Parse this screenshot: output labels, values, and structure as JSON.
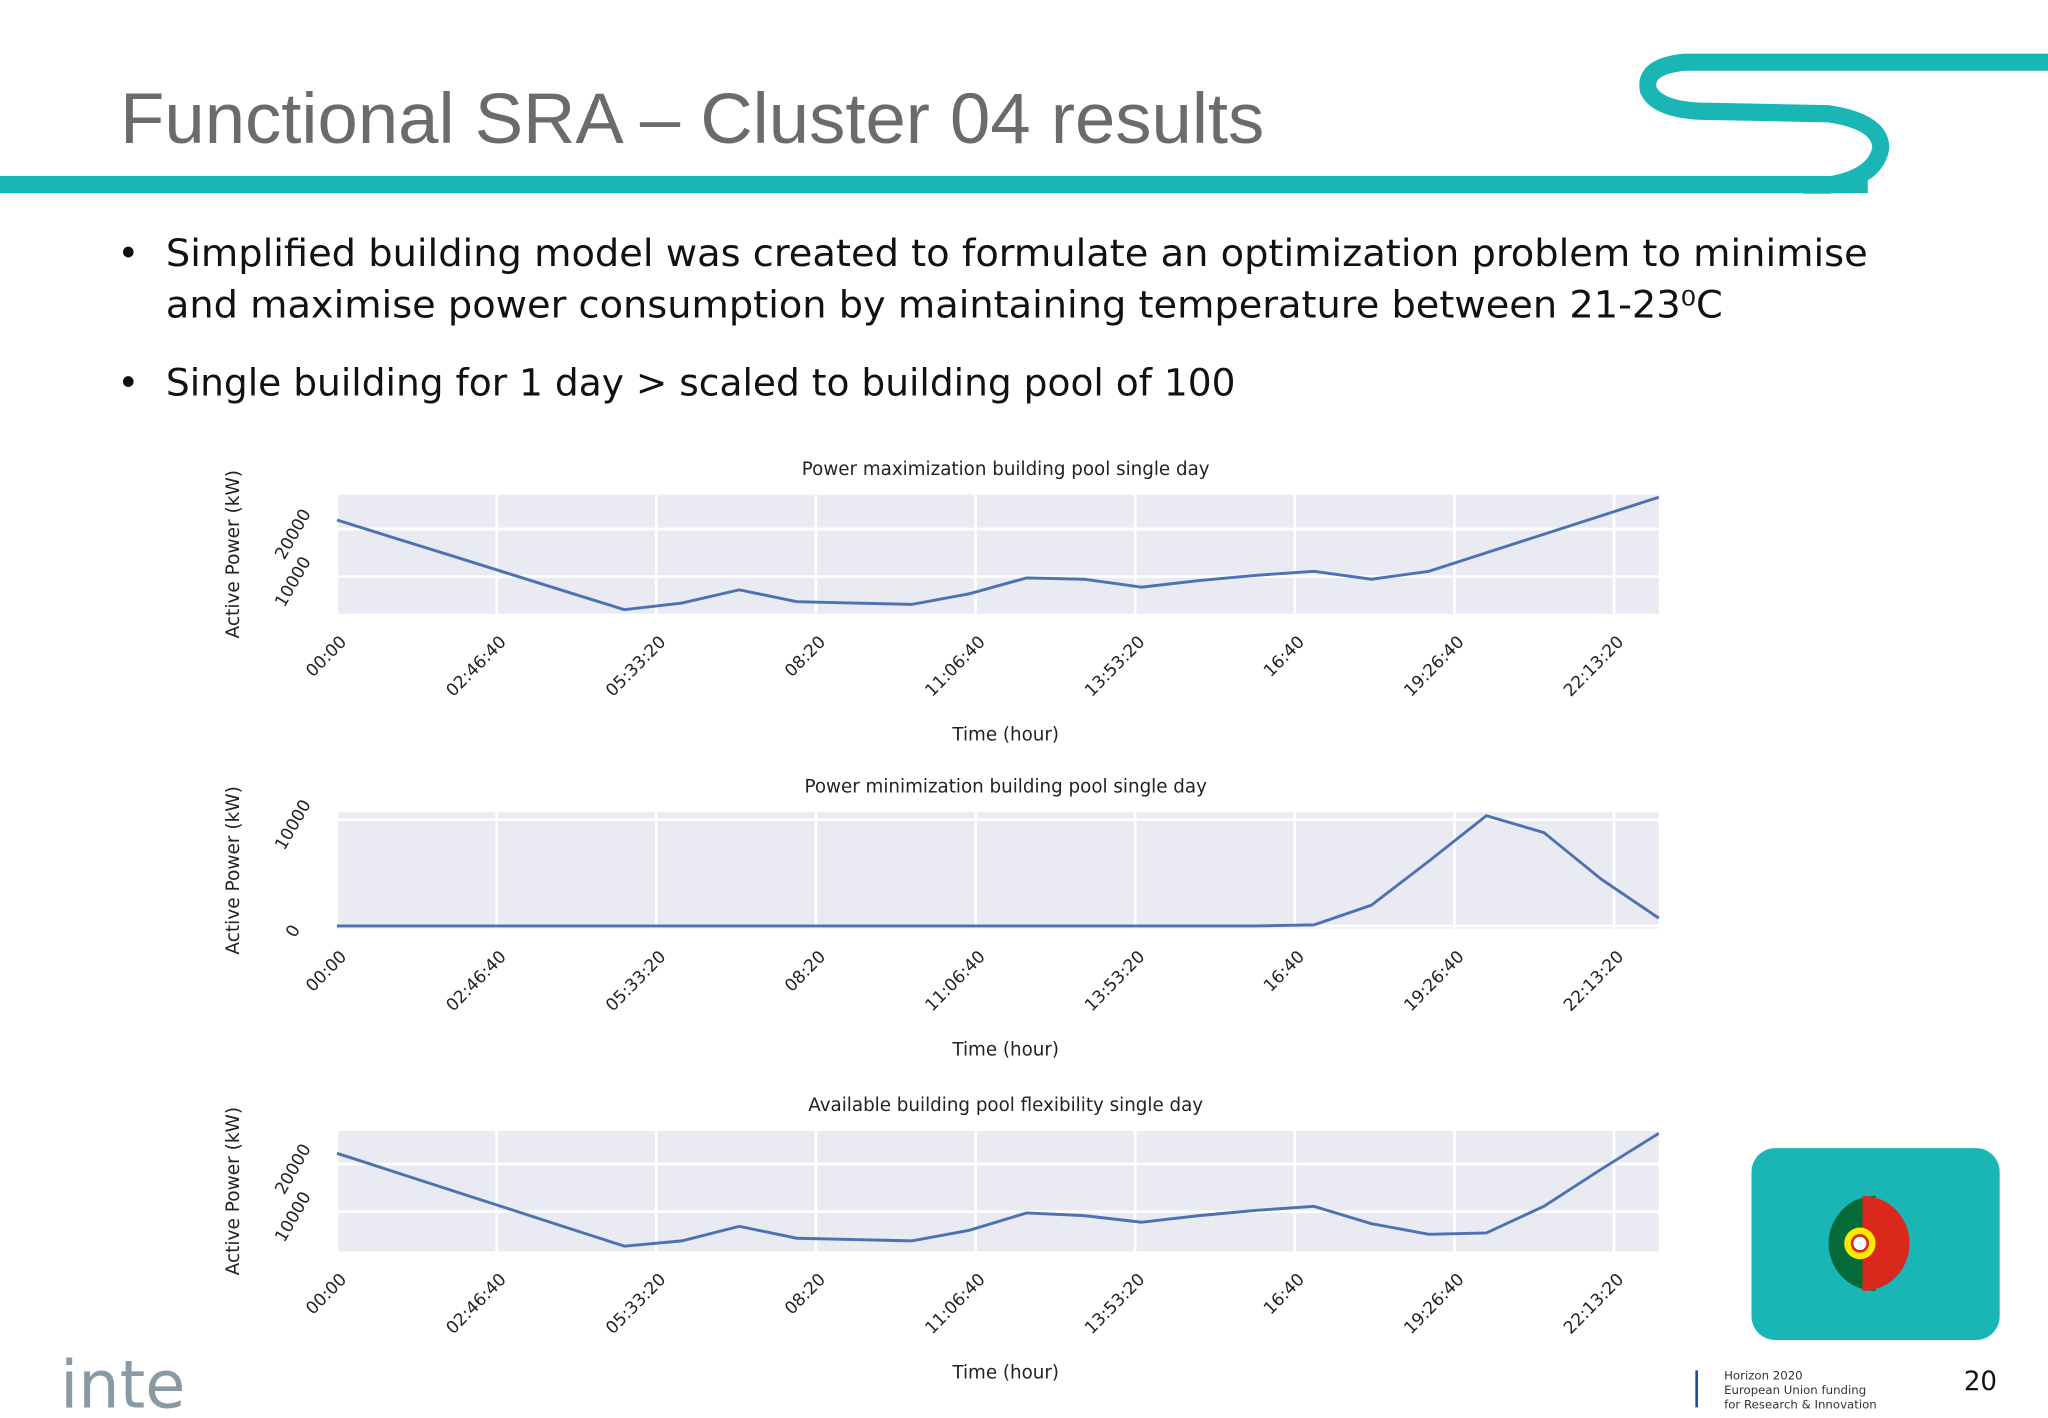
{
  "header": {
    "title": "Functional SRA – Cluster 04 results"
  },
  "bullets": [
    "Simplified building model was created to formulate an optimization problem to minimise",
    "and maximise power consumption by maintaining temperature between 21-23⁰C",
    "Single building for 1 day > scaled to building pool of 100"
  ],
  "chart_data": [
    {
      "type": "line",
      "title": "Power maximization building pool single day",
      "x_label": "Time (hour)",
      "y_label": "Active Power (kW)",
      "color": "#4c72b0",
      "grid": true,
      "x": [
        0,
        3600,
        7200,
        10800,
        14400,
        18000,
        21600,
        25200,
        28800,
        32400,
        36000,
        39600,
        43200,
        46800,
        50400,
        54000,
        57600,
        61200,
        64800,
        68400,
        72000,
        75600,
        79200,
        82800
      ],
      "values": [
        21900,
        18130,
        14360,
        10590,
        6820,
        3050,
        4440,
        7220,
        4720,
        4440,
        4170,
        6390,
        9720,
        9440,
        7780,
        9170,
        10280,
        11110,
        9440,
        11110,
        15000,
        18890,
        22780,
        26670
      ],
      "xlim": [
        0,
        82800
      ],
      "xticks": [
        {
          "value": 0,
          "label": "00:00"
        },
        {
          "value": 10000,
          "label": "02:46:40"
        },
        {
          "value": 20000,
          "label": "05:33:20"
        },
        {
          "value": 30000,
          "label": "08:20"
        },
        {
          "value": 40000,
          "label": "11:06:40"
        },
        {
          "value": 50000,
          "label": "13:53:20"
        },
        {
          "value": 60000,
          "label": "16:40"
        },
        {
          "value": 70000,
          "label": "19:26:40"
        },
        {
          "value": 80000,
          "label": "22:13:20"
        }
      ],
      "ylim": [
        2200,
        27200
      ],
      "yticks": [
        10000,
        20000
      ]
    },
    {
      "type": "line",
      "title": "Power minimization building pool single day",
      "x_label": "Time (hour)",
      "y_label": "Active Power (kW)",
      "color": "#4c72b0",
      "grid": true,
      "x": [
        0,
        3600,
        7200,
        10800,
        14400,
        18000,
        21600,
        25200,
        28800,
        32400,
        36000,
        39600,
        43200,
        46800,
        50400,
        54000,
        57600,
        61200,
        64800,
        68400,
        72000,
        75600,
        79200,
        82800
      ],
      "values": [
        0,
        0,
        0,
        0,
        0,
        0,
        0,
        0,
        0,
        0,
        0,
        0,
        0,
        0,
        0,
        0,
        0,
        100,
        1950,
        6100,
        10370,
        8780,
        4390,
        730
      ],
      "xlim": [
        0,
        82800
      ],
      "xticks": [
        {
          "value": 0,
          "label": "00:00"
        },
        {
          "value": 10000,
          "label": "02:46:40"
        },
        {
          "value": 20000,
          "label": "05:33:20"
        },
        {
          "value": 30000,
          "label": "08:20"
        },
        {
          "value": 40000,
          "label": "11:06:40"
        },
        {
          "value": 50000,
          "label": "13:53:20"
        },
        {
          "value": 60000,
          "label": "16:40"
        },
        {
          "value": 70000,
          "label": "19:26:40"
        },
        {
          "value": 80000,
          "label": "22:13:20"
        }
      ],
      "ylim": [
        -250,
        10700
      ],
      "yticks": [
        0,
        10000
      ]
    },
    {
      "type": "line",
      "title": "Available building pool flexibility single day",
      "x_label": "Time (hour)",
      "y_label": "Active Power (kW)",
      "color": "#4c72b0",
      "grid": true,
      "x": [
        0,
        3600,
        7200,
        10800,
        14400,
        18000,
        21600,
        25200,
        28800,
        32400,
        36000,
        39600,
        43200,
        46800,
        50400,
        54000,
        57600,
        61200,
        64800,
        68400,
        72000,
        75600,
        79200,
        82800
      ],
      "values": [
        22220,
        18330,
        14440,
        10560,
        6670,
        2780,
        3890,
        6940,
        4440,
        4170,
        3890,
        6110,
        9720,
        9170,
        7780,
        9170,
        10280,
        11110,
        7500,
        5280,
        5560,
        11110,
        18890,
        26390
      ],
      "xlim": [
        0,
        82800
      ],
      "xticks": [
        {
          "value": 0,
          "label": "00:00"
        },
        {
          "value": 10000,
          "label": "02:46:40"
        },
        {
          "value": 20000,
          "label": "05:33:20"
        },
        {
          "value": 30000,
          "label": "08:20"
        },
        {
          "value": 40000,
          "label": "11:06:40"
        },
        {
          "value": 50000,
          "label": "13:53:20"
        },
        {
          "value": 60000,
          "label": "16:40"
        },
        {
          "value": 70000,
          "label": "19:26:40"
        },
        {
          "value": 80000,
          "label": "22:13:20"
        }
      ],
      "ylim": [
        1700,
        26900
      ],
      "yticks": [
        10000,
        20000
      ]
    }
  ],
  "footer": {
    "logo": "inte",
    "funding": [
      "Horizon 2020",
      "European Union funding",
      "for Research & Innovation"
    ],
    "page_number": "20"
  }
}
